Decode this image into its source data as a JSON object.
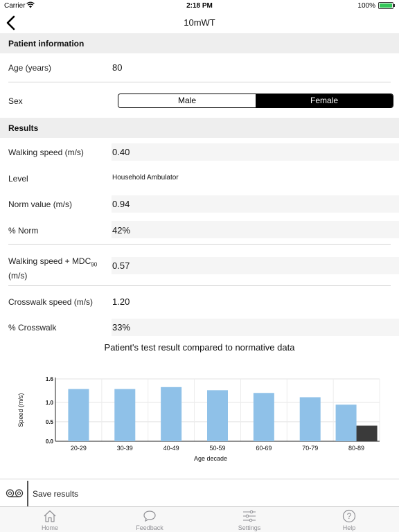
{
  "status": {
    "carrier": "Carrier",
    "time": "2:18 PM",
    "battery": "100%"
  },
  "nav": {
    "title": "10mWT"
  },
  "patient": {
    "header": "Patient information",
    "age_label": "Age (years)",
    "age_value": "80",
    "sex_label": "Sex",
    "sex_options": [
      "Male",
      "Female"
    ],
    "sex_selected": "Female"
  },
  "results": {
    "header": "Results",
    "walking_speed_label": "Walking speed (m/s)",
    "walking_speed_value": "0.40",
    "level_label": "Level",
    "level_value": "Household Ambulator",
    "norm_label": "Norm value (m/s)",
    "norm_value": "0.94",
    "pct_norm_label": "% Norm",
    "pct_norm_value": "42%",
    "mdc_label_a": "Walking speed + MDC",
    "mdc_label_sub": "90",
    "mdc_label_b": "(m/s)",
    "mdc_value": "0.57",
    "crosswalk_label": "Crosswalk speed (m/s)",
    "crosswalk_value": "1.20",
    "pct_crosswalk_label": "% Crosswalk",
    "pct_crosswalk_value": "33%"
  },
  "chart_title": "Patient's test result compared to normative data",
  "chart_data": {
    "type": "bar",
    "categories": [
      "20-29",
      "30-39",
      "40-49",
      "50-59",
      "60-69",
      "70-79",
      "80-89"
    ],
    "series": [
      {
        "values": [
          1.34,
          1.34,
          1.39,
          1.31,
          1.24,
          1.13,
          0.94
        ],
        "color": "#8fc1e8"
      },
      {
        "values": [
          null,
          null,
          null,
          null,
          null,
          null,
          0.4
        ],
        "color": "#3a3a3a"
      }
    ],
    "xlabel": "Age decade",
    "ylabel": "Speed (m/s)",
    "ylim": [
      0,
      1.6
    ],
    "yticks": [
      "0.0",
      "0.5",
      "1.0",
      "1.6"
    ],
    "ytick_values": [
      0.0,
      0.5,
      1.0,
      1.6
    ],
    "grid": true
  },
  "save": {
    "label": "Save results"
  },
  "tabs": [
    {
      "label": "Home",
      "icon": "home-icon"
    },
    {
      "label": "Feedback",
      "icon": "chat-bubble-icon"
    },
    {
      "label": "Settings",
      "icon": "sliders-icon"
    },
    {
      "label": "Help",
      "icon": "help-icon"
    }
  ]
}
